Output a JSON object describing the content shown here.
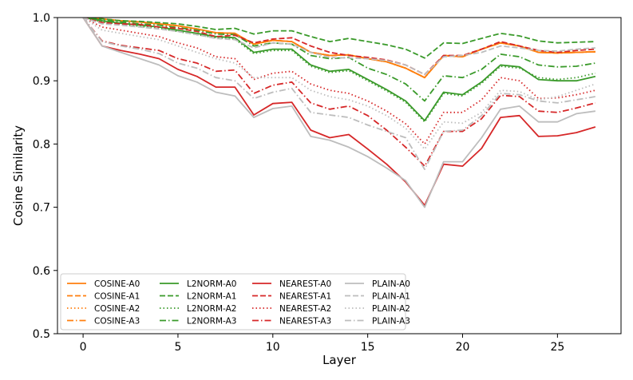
{
  "chart_data": {
    "type": "line",
    "xlabel": "Layer",
    "ylabel": "Cosine Similarity",
    "xlim": [
      -1.35,
      28.35
    ],
    "ylim": [
      0.5,
      1.0
    ],
    "xticks": [
      0,
      5,
      10,
      15,
      20,
      25
    ],
    "yticks": [
      0.5,
      0.6,
      0.7,
      0.8,
      0.9,
      1.0
    ],
    "ytick_labels": [
      "0.5",
      "0.6",
      "0.7",
      "0.8",
      "0.9",
      "1.0"
    ],
    "legend_position": "bottom-left",
    "legend_columns": 4,
    "colors": {
      "COSINE": "#ff7f0e",
      "L2NORM": "#3a9a2a",
      "NEAREST": "#d62728",
      "PLAIN": "#bdbdbd"
    },
    "styles": {
      "A0": "solid",
      "A1": "dashed",
      "A2": "dotted",
      "A3": "dashdot"
    },
    "x": [
      0,
      1,
      2,
      3,
      4,
      5,
      6,
      7,
      8,
      9,
      10,
      11,
      12,
      13,
      14,
      15,
      16,
      17,
      18,
      19,
      20,
      21,
      22,
      23,
      24,
      25,
      26,
      27
    ],
    "series": [
      {
        "name": "COSINE-A0",
        "group": "COSINE",
        "variant": "A0",
        "values": [
          1.0,
          0.998,
          0.995,
          0.993,
          0.99,
          0.987,
          0.982,
          0.976,
          0.975,
          0.958,
          0.964,
          0.962,
          0.945,
          0.94,
          0.941,
          0.935,
          0.93,
          0.92,
          0.905,
          0.94,
          0.938,
          0.95,
          0.96,
          0.955,
          0.945,
          0.944,
          0.945,
          0.946
        ]
      },
      {
        "name": "COSINE-A1",
        "group": "COSINE",
        "variant": "A1",
        "values": [
          1.0,
          0.998,
          0.995,
          0.993,
          0.99,
          0.987,
          0.982,
          0.976,
          0.975,
          0.958,
          0.964,
          0.962,
          0.945,
          0.94,
          0.941,
          0.935,
          0.93,
          0.92,
          0.905,
          0.94,
          0.938,
          0.95,
          0.96,
          0.955,
          0.945,
          0.944,
          0.945,
          0.946
        ]
      },
      {
        "name": "COSINE-A2",
        "group": "COSINE",
        "variant": "A2",
        "values": [
          1.0,
          0.998,
          0.995,
          0.993,
          0.99,
          0.987,
          0.982,
          0.976,
          0.975,
          0.958,
          0.964,
          0.962,
          0.945,
          0.94,
          0.941,
          0.935,
          0.93,
          0.92,
          0.905,
          0.94,
          0.938,
          0.95,
          0.96,
          0.955,
          0.945,
          0.944,
          0.945,
          0.946
        ]
      },
      {
        "name": "COSINE-A3",
        "group": "COSINE",
        "variant": "A3",
        "values": [
          1.0,
          0.998,
          0.995,
          0.993,
          0.99,
          0.987,
          0.982,
          0.976,
          0.975,
          0.958,
          0.964,
          0.962,
          0.945,
          0.94,
          0.941,
          0.935,
          0.93,
          0.92,
          0.905,
          0.94,
          0.938,
          0.95,
          0.96,
          0.955,
          0.945,
          0.944,
          0.945,
          0.946
        ]
      },
      {
        "name": "L2NORM-A0",
        "group": "L2NORM",
        "variant": "A0",
        "values": [
          1.0,
          0.995,
          0.991,
          0.988,
          0.985,
          0.98,
          0.975,
          0.97,
          0.968,
          0.945,
          0.95,
          0.95,
          0.925,
          0.915,
          0.918,
          0.902,
          0.886,
          0.868,
          0.837,
          0.882,
          0.878,
          0.898,
          0.925,
          0.922,
          0.902,
          0.9,
          0.9,
          0.907
        ]
      },
      {
        "name": "L2NORM-A1",
        "group": "L2NORM",
        "variant": "A1",
        "values": [
          1.0,
          0.998,
          0.995,
          0.994,
          0.992,
          0.99,
          0.986,
          0.981,
          0.983,
          0.974,
          0.979,
          0.979,
          0.97,
          0.962,
          0.967,
          0.962,
          0.957,
          0.95,
          0.936,
          0.96,
          0.959,
          0.967,
          0.975,
          0.971,
          0.963,
          0.96,
          0.961,
          0.962
        ]
      },
      {
        "name": "L2NORM-A2",
        "group": "L2NORM",
        "variant": "A2",
        "values": [
          1.0,
          0.993,
          0.989,
          0.986,
          0.983,
          0.978,
          0.973,
          0.968,
          0.966,
          0.943,
          0.948,
          0.948,
          0.923,
          0.913,
          0.916,
          0.9,
          0.884,
          0.866,
          0.835,
          0.88,
          0.876,
          0.896,
          0.923,
          0.92,
          0.905,
          0.902,
          0.905,
          0.912
        ]
      },
      {
        "name": "L2NORM-A3",
        "group": "L2NORM",
        "variant": "A3",
        "values": [
          1.0,
          0.996,
          0.993,
          0.99,
          0.988,
          0.984,
          0.98,
          0.974,
          0.973,
          0.955,
          0.96,
          0.958,
          0.94,
          0.935,
          0.937,
          0.92,
          0.91,
          0.895,
          0.868,
          0.908,
          0.905,
          0.918,
          0.942,
          0.938,
          0.925,
          0.922,
          0.923,
          0.928
        ]
      },
      {
        "name": "NEAREST-A0",
        "group": "NEAREST",
        "variant": "A0",
        "values": [
          1.0,
          0.955,
          0.948,
          0.942,
          0.935,
          0.918,
          0.907,
          0.89,
          0.89,
          0.846,
          0.864,
          0.866,
          0.822,
          0.81,
          0.815,
          0.792,
          0.768,
          0.74,
          0.703,
          0.768,
          0.765,
          0.793,
          0.842,
          0.845,
          0.812,
          0.813,
          0.818,
          0.827
        ]
      },
      {
        "name": "NEAREST-A1",
        "group": "NEAREST",
        "variant": "A1",
        "values": [
          1.0,
          0.992,
          0.99,
          0.989,
          0.985,
          0.983,
          0.978,
          0.97,
          0.972,
          0.96,
          0.966,
          0.968,
          0.955,
          0.945,
          0.94,
          0.937,
          0.933,
          0.925,
          0.91,
          0.94,
          0.94,
          0.95,
          0.962,
          0.955,
          0.948,
          0.945,
          0.948,
          0.95
        ]
      },
      {
        "name": "NEAREST-A2",
        "group": "NEAREST",
        "variant": "A2",
        "values": [
          1.0,
          0.985,
          0.98,
          0.975,
          0.97,
          0.96,
          0.952,
          0.938,
          0.935,
          0.902,
          0.912,
          0.915,
          0.895,
          0.885,
          0.88,
          0.868,
          0.852,
          0.832,
          0.8,
          0.85,
          0.85,
          0.87,
          0.905,
          0.9,
          0.872,
          0.873,
          0.878,
          0.885
        ]
      },
      {
        "name": "NEAREST-A3",
        "group": "NEAREST",
        "variant": "A3",
        "values": [
          1.0,
          0.963,
          0.956,
          0.952,
          0.948,
          0.935,
          0.928,
          0.915,
          0.917,
          0.88,
          0.893,
          0.898,
          0.865,
          0.855,
          0.86,
          0.845,
          0.822,
          0.795,
          0.765,
          0.82,
          0.82,
          0.84,
          0.877,
          0.875,
          0.852,
          0.85,
          0.857,
          0.865
        ]
      },
      {
        "name": "PLAIN-A0",
        "group": "PLAIN",
        "variant": "A0",
        "values": [
          1.0,
          0.955,
          0.945,
          0.935,
          0.925,
          0.908,
          0.898,
          0.882,
          0.876,
          0.842,
          0.856,
          0.86,
          0.812,
          0.806,
          0.795,
          0.78,
          0.762,
          0.742,
          0.7,
          0.772,
          0.772,
          0.81,
          0.855,
          0.86,
          0.835,
          0.835,
          0.848,
          0.852
        ]
      },
      {
        "name": "PLAIN-A1",
        "group": "PLAIN",
        "variant": "A1",
        "values": [
          1.0,
          0.99,
          0.988,
          0.985,
          0.982,
          0.978,
          0.973,
          0.967,
          0.965,
          0.952,
          0.96,
          0.958,
          0.945,
          0.937,
          0.936,
          0.935,
          0.932,
          0.925,
          0.91,
          0.938,
          0.94,
          0.945,
          0.955,
          0.952,
          0.948,
          0.947,
          0.95,
          0.952
        ]
      },
      {
        "name": "PLAIN-A2",
        "group": "PLAIN",
        "variant": "A2",
        "values": [
          1.0,
          0.98,
          0.975,
          0.97,
          0.965,
          0.955,
          0.945,
          0.935,
          0.928,
          0.905,
          0.905,
          0.905,
          0.885,
          0.875,
          0.87,
          0.86,
          0.845,
          0.825,
          0.792,
          0.835,
          0.833,
          0.85,
          0.885,
          0.883,
          0.87,
          0.875,
          0.885,
          0.895
        ]
      },
      {
        "name": "PLAIN-A3",
        "group": "PLAIN",
        "variant": "A3",
        "values": [
          1.0,
          0.962,
          0.955,
          0.95,
          0.943,
          0.928,
          0.92,
          0.905,
          0.9,
          0.872,
          0.882,
          0.888,
          0.85,
          0.846,
          0.842,
          0.83,
          0.82,
          0.81,
          0.76,
          0.82,
          0.822,
          0.845,
          0.88,
          0.878,
          0.868,
          0.865,
          0.87,
          0.875
        ]
      }
    ]
  }
}
